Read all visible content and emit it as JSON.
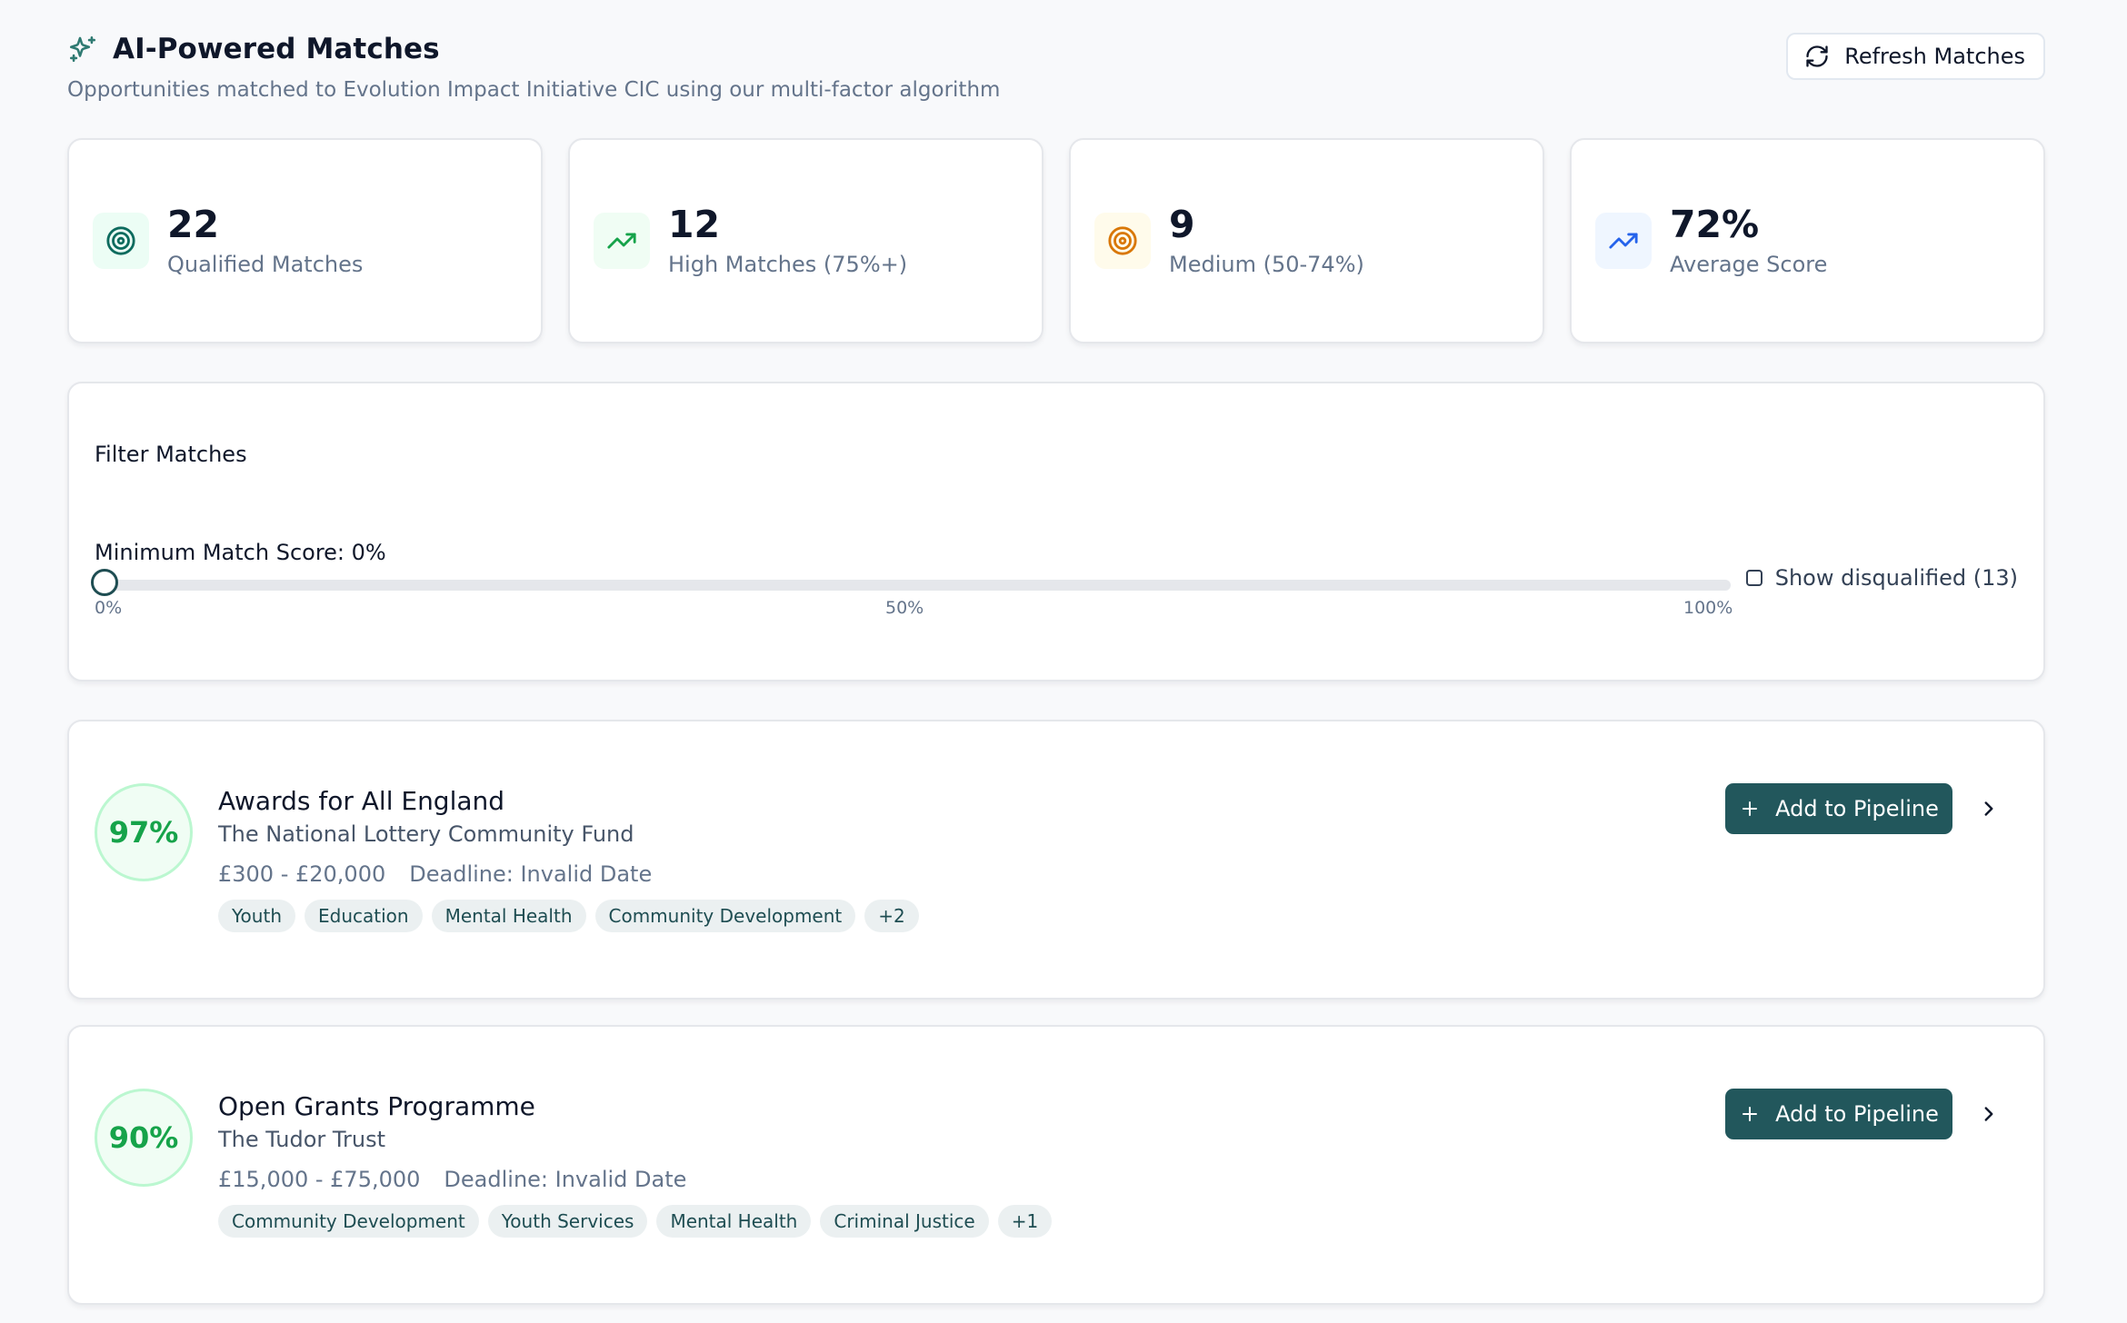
{
  "header": {
    "title": "AI-Powered Matches",
    "subtitle": "Opportunities matched to Evolution Impact Initiative CIC using our multi-factor algorithm",
    "refresh_label": "Refresh Matches"
  },
  "stats": [
    {
      "value": "22",
      "label": "Qualified Matches",
      "icon": "target-icon",
      "color": "#0d6b5e",
      "bg": "#ecfdf5"
    },
    {
      "value": "12",
      "label": "High Matches (75%+)",
      "icon": "trending-up-icon",
      "color": "#16a34a",
      "bg": "#f0fdf4"
    },
    {
      "value": "9",
      "label": "Medium (50-74%)",
      "icon": "target-icon",
      "color": "#d97706",
      "bg": "#fffbeb"
    },
    {
      "value": "72%",
      "label": "Average Score",
      "icon": "trending-up-icon",
      "color": "#2563eb",
      "bg": "#eff6ff"
    }
  ],
  "filter": {
    "title": "Filter Matches",
    "min_score_label": "Minimum Match Score: 0%",
    "min_score_value": 0,
    "ticks": [
      "0%",
      "50%",
      "100%"
    ],
    "show_disqualified_label": "Show disqualified (13)",
    "show_disqualified_checked": false
  },
  "matches": [
    {
      "score": "97%",
      "name": "Awards for All England",
      "funder": "The National Lottery Community Fund",
      "amount": "£300 - £20,000",
      "deadline": "Deadline: Invalid Date",
      "tags": [
        "Youth",
        "Education",
        "Mental Health",
        "Community Development",
        "+2"
      ],
      "action_label": "Add to Pipeline"
    },
    {
      "score": "90%",
      "name": "Open Grants Programme",
      "funder": "The Tudor Trust",
      "amount": "£15,000 - £75,000",
      "deadline": "Deadline: Invalid Date",
      "tags": [
        "Community Development",
        "Youth Services",
        "Mental Health",
        "Criminal Justice",
        "+1"
      ],
      "action_label": "Add to Pipeline"
    }
  ],
  "colors": {
    "brand": "#22575c",
    "score_green": "#16a34a"
  }
}
